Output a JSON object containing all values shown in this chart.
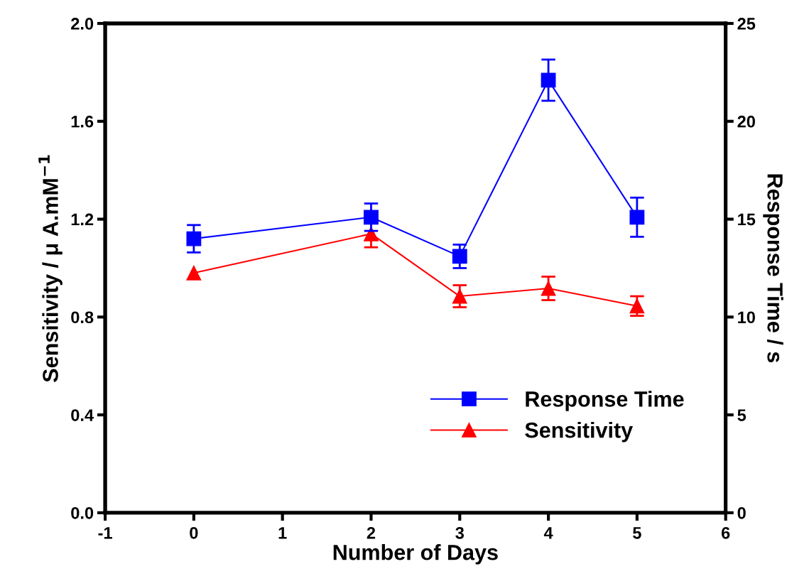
{
  "chart_data": {
    "type": "line",
    "x": [
      0,
      2,
      3,
      4,
      5
    ],
    "xlabel": "Number of Days",
    "ylabel": "Sensitivity / μ A.mM$^{−1}$",
    "y2label": "Response Time / s",
    "xlim": [
      -1,
      6
    ],
    "xticks": [
      -1,
      0,
      1,
      2,
      3,
      4,
      5,
      6
    ],
    "ylim": [
      0.0,
      2.0
    ],
    "yticks": [
      {
        "value": 0,
        "label": "0.0"
      },
      0.4,
      0.8,
      1.2,
      1.6,
      {
        "value": 2,
        "label": "2.0"
      }
    ],
    "y2lim": [
      0,
      25
    ],
    "y2ticks": [
      0,
      5,
      10,
      15,
      20,
      25
    ],
    "series": [
      {
        "name": "Response Time",
        "color": "#0000ff",
        "axis": "y2",
        "marker": "square",
        "values": [
          14.0,
          15.1,
          13.1,
          22.1,
          15.1
        ],
        "errors": [
          0.7,
          0.7,
          0.6,
          1.05,
          1.0
        ]
      },
      {
        "name": "Sensitivity",
        "color": "#ff0000",
        "axis": "y",
        "marker": "triangle",
        "values": [
          0.98,
          1.14,
          0.885,
          0.917,
          0.845
        ],
        "errors": [
          null,
          0.055,
          0.045,
          0.048,
          0.04
        ]
      }
    ],
    "legend": "bottom right",
    "grid": false,
    "line_style": "solid"
  }
}
